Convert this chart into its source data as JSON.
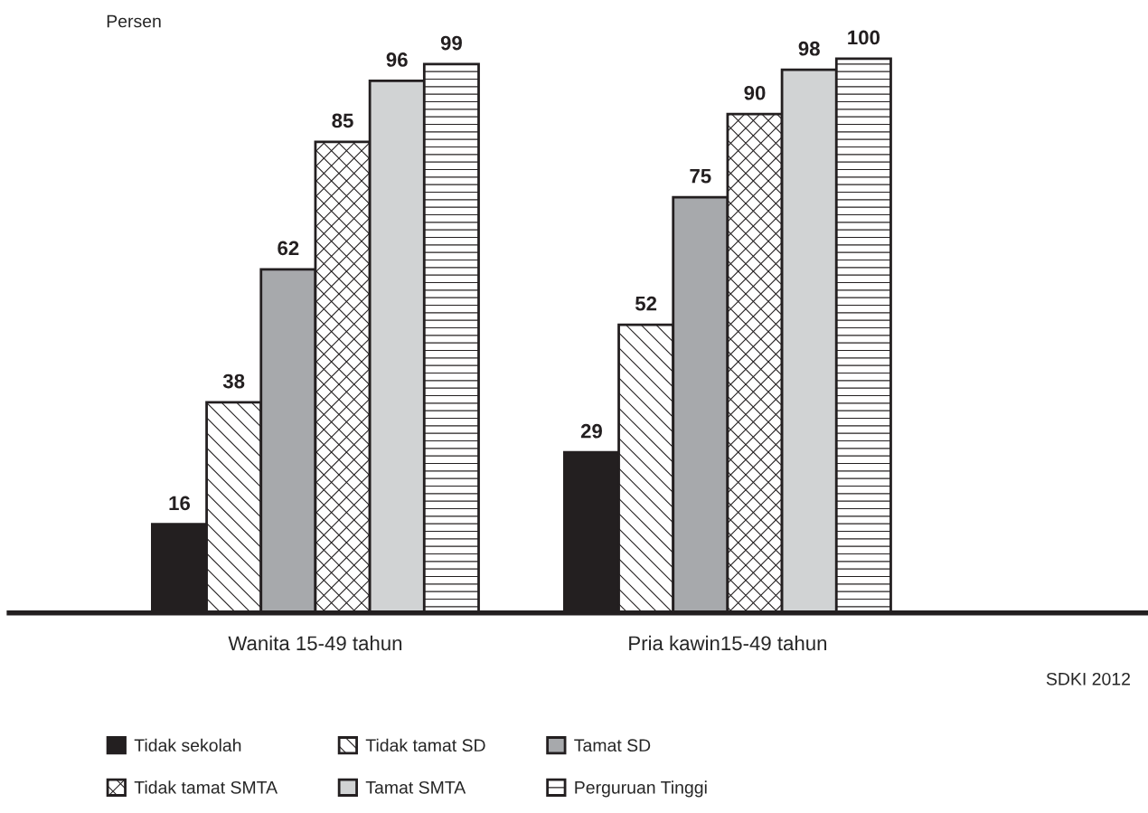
{
  "chart_data": {
    "type": "bar",
    "ylabel": "Persen",
    "categories": [
      "Wanita 15-49 tahun",
      "Pria kawin15-49 tahun"
    ],
    "series": [
      {
        "name": "Tidak sekolah",
        "color": "#231f20",
        "values": [
          16,
          29
        ]
      },
      {
        "name": "Tidak tamat SD",
        "color": "#231f20",
        "values": [
          38,
          52
        ]
      },
      {
        "name": "Tamat SD",
        "color": "#a7a9ac",
        "values": [
          62,
          75
        ]
      },
      {
        "name": "Tidak tamat SMTA",
        "color": "#231f20",
        "values": [
          85,
          90
        ]
      },
      {
        "name": "Tamat SMTA",
        "color": "#d1d3d4",
        "values": [
          96,
          98
        ]
      },
      {
        "name": "Perguruan Tinggi",
        "color": "#231f20",
        "values": [
          99,
          100
        ]
      }
    ],
    "data_labels": true,
    "legend": "bottom",
    "grid": false,
    "tick_labels": "x",
    "annotations": [
      "SDKI 2012"
    ]
  }
}
